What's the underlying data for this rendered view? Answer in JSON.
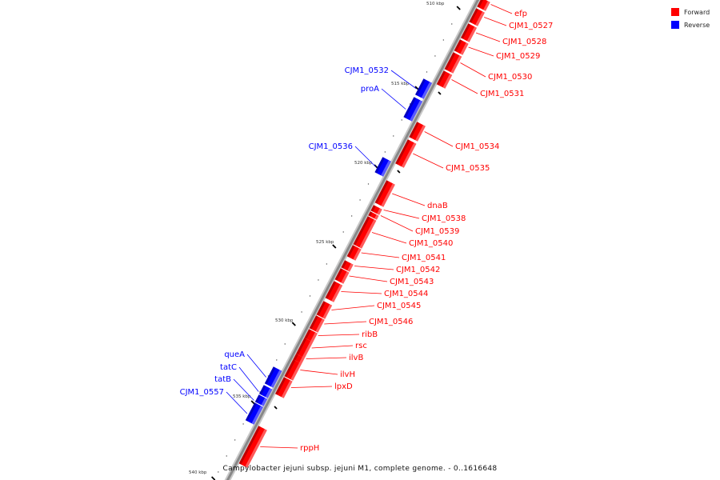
{
  "caption": "Campylobacter jejuni subsp. jejuni M1, complete genome. - 0..1616648",
  "legend": [
    {
      "label": "Forward",
      "color": "#ff0000"
    },
    {
      "label": "Reverse",
      "color": "#0000ff"
    }
  ],
  "colors": {
    "forward": "#ff0000",
    "reverse": "#0000ff",
    "backbone": "#888888"
  },
  "tick_labels": [
    "510 kbp",
    "515 kbp",
    "520 kbp",
    "525 kbp",
    "530 kbp",
    "535 kbp",
    "540 kbp"
  ],
  "genes": [
    {
      "name": "efp",
      "strand": "forward"
    },
    {
      "name": "CJM1_0527",
      "strand": "forward"
    },
    {
      "name": "CJM1_0528",
      "strand": "forward"
    },
    {
      "name": "CJM1_0529",
      "strand": "forward"
    },
    {
      "name": "CJM1_0530",
      "strand": "forward"
    },
    {
      "name": "CJM1_0531",
      "strand": "forward"
    },
    {
      "name": "CJM1_0532",
      "strand": "reverse"
    },
    {
      "name": "proA",
      "strand": "reverse"
    },
    {
      "name": "CJM1_0534",
      "strand": "forward"
    },
    {
      "name": "CJM1_0535",
      "strand": "forward"
    },
    {
      "name": "CJM1_0536",
      "strand": "reverse"
    },
    {
      "name": "dnaB",
      "strand": "forward"
    },
    {
      "name": "CJM1_0538",
      "strand": "forward"
    },
    {
      "name": "CJM1_0539",
      "strand": "forward"
    },
    {
      "name": "CJM1_0540",
      "strand": "forward"
    },
    {
      "name": "CJM1_0541",
      "strand": "forward"
    },
    {
      "name": "CJM1_0542",
      "strand": "forward"
    },
    {
      "name": "CJM1_0543",
      "strand": "forward"
    },
    {
      "name": "CJM1_0544",
      "strand": "forward"
    },
    {
      "name": "CJM1_0545",
      "strand": "forward"
    },
    {
      "name": "CJM1_0546",
      "strand": "forward"
    },
    {
      "name": "ribB",
      "strand": "forward"
    },
    {
      "name": "rsc",
      "strand": "forward"
    },
    {
      "name": "ilvB",
      "strand": "forward"
    },
    {
      "name": "ilvH",
      "strand": "forward"
    },
    {
      "name": "lpxD",
      "strand": "forward"
    },
    {
      "name": "queA",
      "strand": "reverse"
    },
    {
      "name": "tatC",
      "strand": "reverse"
    },
    {
      "name": "tatB",
      "strand": "reverse"
    },
    {
      "name": "CJM1_0557",
      "strand": "reverse"
    },
    {
      "name": "rppH",
      "strand": "forward"
    }
  ]
}
